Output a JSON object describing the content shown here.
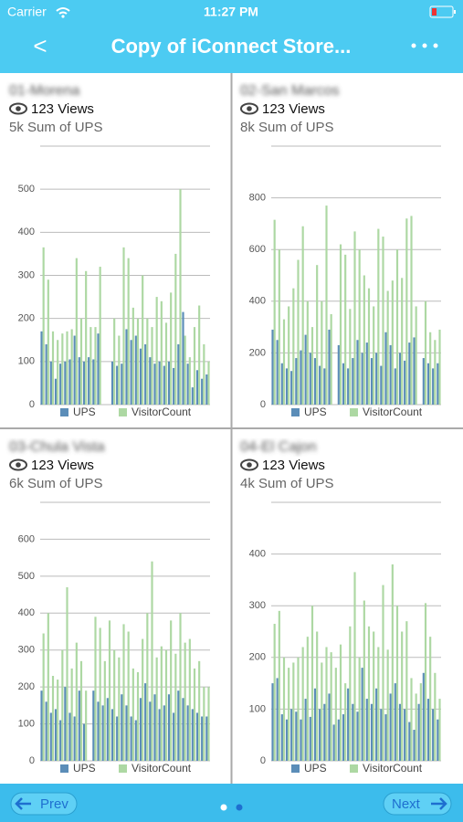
{
  "status_bar": {
    "carrier": "Carrier",
    "time": "11:27 PM"
  },
  "nav": {
    "back": "<",
    "title": "Copy of iConnect Store..."
  },
  "panels": [
    {
      "name": "01-Morena",
      "views": "123 Views",
      "summary": "5k Sum of UPS",
      "chart_data": {
        "type": "bar",
        "categories": [
          null,
          null,
          null,
          null,
          null,
          null,
          null,
          null,
          null,
          null,
          null,
          null,
          null,
          null,
          null,
          null,
          null,
          null,
          null,
          null,
          null,
          null,
          null,
          null,
          null,
          null,
          null,
          null,
          null,
          null,
          null,
          null,
          null,
          null,
          null,
          null
        ],
        "series": [
          {
            "name": "UPS",
            "color": "#5b8db8",
            "values": [
              170,
              140,
              100,
              60,
              95,
              100,
              105,
              160,
              110,
              100,
              110,
              105,
              165,
              null,
              null,
              100,
              90,
              95,
              175,
              150,
              160,
              130,
              140,
              110,
              95,
              100,
              90,
              100,
              85,
              140,
              215,
              95,
              40,
              80,
              60,
              70
            ]
          },
          {
            "name": "VisitorCount",
            "color": "#add8a3",
            "values": [
              365,
              290,
              170,
              150,
              165,
              170,
              175,
              340,
              200,
              310,
              180,
              180,
              320,
              null,
              null,
              200,
              160,
              365,
              340,
              225,
              200,
              300,
              200,
              180,
              250,
              240,
              190,
              260,
              350,
              500,
              160,
              110,
              180,
              230,
              140,
              100
            ]
          }
        ],
        "ylim": [
          0,
          600
        ],
        "yticks": [
          0,
          100,
          200,
          300,
          400,
          500
        ],
        "grid": true
      }
    },
    {
      "name": "02-San Marcos",
      "views": "123 Views",
      "summary": "8k Sum of UPS",
      "chart_data": {
        "type": "bar",
        "categories": [
          null,
          null,
          null,
          null,
          null,
          null,
          null,
          null,
          null,
          null,
          null,
          null,
          null,
          null,
          null,
          null,
          null,
          null,
          null,
          null,
          null,
          null,
          null,
          null,
          null,
          null,
          null,
          null,
          null,
          null,
          null,
          null,
          null,
          null,
          null,
          null
        ],
        "series": [
          {
            "name": "UPS",
            "color": "#5b8db8",
            "values": [
              290,
              250,
              160,
              140,
              130,
              180,
              210,
              270,
              200,
              180,
              150,
              140,
              290,
              null,
              230,
              160,
              140,
              180,
              250,
              200,
              240,
              180,
              200,
              150,
              280,
              230,
              140,
              200,
              170,
              240,
              260,
              null,
              180,
              160,
              140,
              160
            ]
          },
          {
            "name": "VisitorCount",
            "color": "#add8a3",
            "values": [
              715,
              600,
              330,
              380,
              450,
              560,
              690,
              400,
              300,
              540,
              400,
              770,
              350,
              null,
              620,
              580,
              370,
              670,
              600,
              500,
              450,
              380,
              680,
              650,
              440,
              480,
              600,
              490,
              720,
              730,
              380,
              null,
              400,
              280,
              250,
              290
            ]
          }
        ],
        "ylim": [
          0,
          1000
        ],
        "yticks": [
          0,
          200,
          400,
          600,
          800
        ],
        "grid": true
      }
    },
    {
      "name": "03-Chula Vista",
      "views": "123 Views",
      "summary": "6k Sum of UPS",
      "chart_data": {
        "type": "bar",
        "categories": [
          null,
          null,
          null,
          null,
          null,
          null,
          null,
          null,
          null,
          null,
          null,
          null,
          null,
          null,
          null,
          null,
          null,
          null,
          null,
          null,
          null,
          null,
          null,
          null,
          null,
          null,
          null,
          null,
          null,
          null,
          null,
          null,
          null,
          null,
          null,
          null
        ],
        "series": [
          {
            "name": "UPS",
            "color": "#5b8db8",
            "values": [
              190,
              160,
              130,
              140,
              110,
              200,
              130,
              120,
              190,
              100,
              null,
              190,
              160,
              150,
              170,
              140,
              120,
              180,
              150,
              120,
              110,
              170,
              210,
              160,
              180,
              140,
              150,
              180,
              130,
              190,
              170,
              150,
              140,
              130,
              120,
              120
            ]
          },
          {
            "name": "VisitorCount",
            "color": "#add8a3",
            "values": [
              345,
              400,
              230,
              220,
              300,
              470,
              250,
              320,
              270,
              190,
              null,
              390,
              360,
              270,
              380,
              300,
              280,
              370,
              350,
              250,
              240,
              330,
              400,
              540,
              280,
              310,
              300,
              380,
              290,
              400,
              320,
              330,
              250,
              270,
              200,
              200
            ]
          }
        ],
        "ylim": [
          0,
          700
        ],
        "yticks": [
          0,
          100,
          200,
          300,
          400,
          500,
          600
        ],
        "grid": true
      }
    },
    {
      "name": "04-El Cajon",
      "views": "123 Views",
      "summary": "4k Sum of UPS",
      "chart_data": {
        "type": "bar",
        "categories": [
          null,
          null,
          null,
          null,
          null,
          null,
          null,
          null,
          null,
          null,
          null,
          null,
          null,
          null,
          null,
          null,
          null,
          null,
          null,
          null,
          null,
          null,
          null,
          null,
          null,
          null,
          null,
          null,
          null,
          null,
          null,
          null,
          null,
          null,
          null,
          null
        ],
        "series": [
          {
            "name": "UPS",
            "color": "#5b8db8",
            "values": [
              150,
              160,
              90,
              80,
              100,
              95,
              80,
              120,
              85,
              140,
              100,
              110,
              130,
              70,
              80,
              90,
              140,
              110,
              95,
              180,
              120,
              110,
              140,
              100,
              90,
              130,
              150,
              110,
              100,
              75,
              60,
              110,
              170,
              120,
              100,
              80
            ]
          },
          {
            "name": "VisitorCount",
            "color": "#add8a3",
            "values": [
              265,
              290,
              200,
              180,
              190,
              200,
              220,
              240,
              300,
              250,
              190,
              220,
              210,
              180,
              225,
              150,
              260,
              365,
              200,
              310,
              260,
              250,
              220,
              340,
              215,
              380,
              300,
              250,
              270,
              160,
              130,
              150,
              305,
              240,
              170,
              120
            ]
          }
        ],
        "ylim": [
          0,
          500
        ],
        "yticks": [
          0,
          100,
          200,
          300,
          400
        ],
        "grid": true
      }
    }
  ],
  "footer": {
    "prev": "Prev",
    "next": "Next"
  }
}
